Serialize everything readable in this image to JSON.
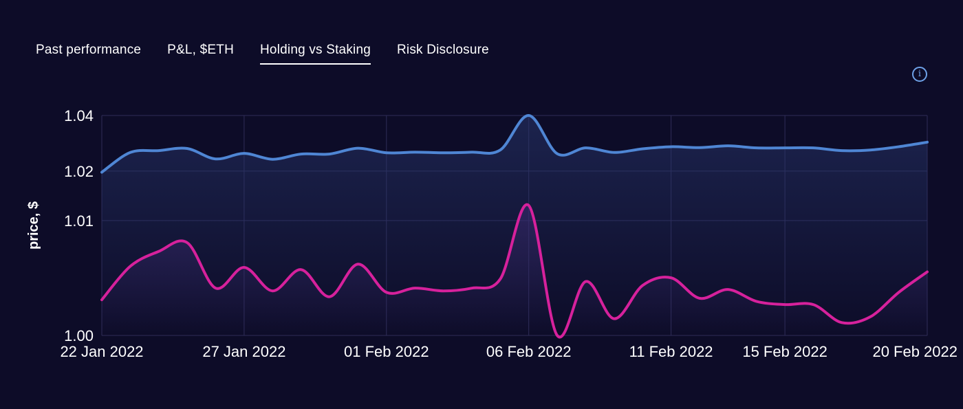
{
  "tabs": [
    {
      "label": "Past performance",
      "active": false
    },
    {
      "label": "P&L, $ETH",
      "active": false
    },
    {
      "label": "Holding vs Staking",
      "active": true
    },
    {
      "label": "Risk Disclosure",
      "active": false
    }
  ],
  "info_icon": "info-icon",
  "colors": {
    "background": "#0d0c28",
    "grid": "#2f2d58",
    "holding": "#4f86d4",
    "staking": "#d6219c"
  },
  "chart_data": {
    "type": "line",
    "title": "",
    "xlabel": "",
    "ylabel": "price, $",
    "y_ticks": [
      1.0,
      1.01,
      1.02,
      1.04
    ],
    "y_tick_labels": [
      "1.00",
      "1.01",
      "1.02",
      "1.04"
    ],
    "ylim": [
      1.0,
      1.04
    ],
    "y_scale": "log",
    "x_range": [
      "2022-01-22",
      "2022-02-20"
    ],
    "x_ticks": [
      "2022-01-22",
      "2022-01-27",
      "2022-02-01",
      "2022-02-06",
      "2022-02-11",
      "2022-02-15",
      "2022-02-20"
    ],
    "x_tick_labels": [
      "22 Jan 2022",
      "27 Jan 2022",
      "01 Feb 2022",
      "06 Feb 2022",
      "11 Feb 2022",
      "15 Feb 2022",
      "20 Feb 2022"
    ],
    "grid": true,
    "series": [
      {
        "color": "#4f86d4",
        "x": [
          "2022-01-22",
          "2022-01-23",
          "2022-01-24",
          "2022-01-25",
          "2022-01-26",
          "2022-01-27",
          "2022-01-28",
          "2022-01-29",
          "2022-01-30",
          "2022-01-31",
          "2022-02-01",
          "2022-02-02",
          "2022-02-03",
          "2022-02-04",
          "2022-02-05",
          "2022-02-06",
          "2022-02-07",
          "2022-02-08",
          "2022-02-09",
          "2022-02-10",
          "2022-02-11",
          "2022-02-12",
          "2022-02-13",
          "2022-02-14",
          "2022-02-15",
          "2022-02-16",
          "2022-02-17",
          "2022-02-18",
          "2022-02-19",
          "2022-02-20"
        ],
        "y": [
          1.0197,
          1.0254,
          1.026,
          1.0267,
          1.0234,
          1.0251,
          1.0233,
          1.0249,
          1.0249,
          1.0268,
          1.0253,
          1.0255,
          1.0253,
          1.0255,
          1.0262,
          1.04,
          1.025,
          1.0269,
          1.0254,
          1.0266,
          1.0273,
          1.027,
          1.0276,
          1.0269,
          1.0269,
          1.0269,
          1.026,
          1.0262,
          1.0273,
          1.0289
        ]
      },
      {
        "color": "#d6219c",
        "x": [
          "2022-01-22",
          "2022-01-23",
          "2022-01-24",
          "2022-01-25",
          "2022-01-26",
          "2022-01-27",
          "2022-01-28",
          "2022-01-29",
          "2022-01-30",
          "2022-01-31",
          "2022-02-01",
          "2022-02-02",
          "2022-02-03",
          "2022-02-04",
          "2022-02-05",
          "2022-02-06",
          "2022-02-07",
          "2022-02-08",
          "2022-02-09",
          "2022-02-10",
          "2022-02-11",
          "2022-02-12",
          "2022-02-13",
          "2022-02-14",
          "2022-02-15",
          "2022-02-16",
          "2022-02-17",
          "2022-02-18",
          "2022-02-19",
          "2022-02-20"
        ],
        "y": [
          1.0019,
          1.0045,
          1.006,
          1.007,
          1.0027,
          1.0044,
          1.0025,
          1.0042,
          1.0021,
          1.0047,
          1.0024,
          1.0027,
          1.0025,
          1.0027,
          1.0034,
          1.0125,
          1.0,
          1.0032,
          1.0008,
          1.0029,
          1.0035,
          1.002,
          1.0026,
          1.0018,
          1.0016,
          1.0016,
          1.0006,
          1.0009,
          1.0024,
          1.004
        ]
      }
    ]
  }
}
